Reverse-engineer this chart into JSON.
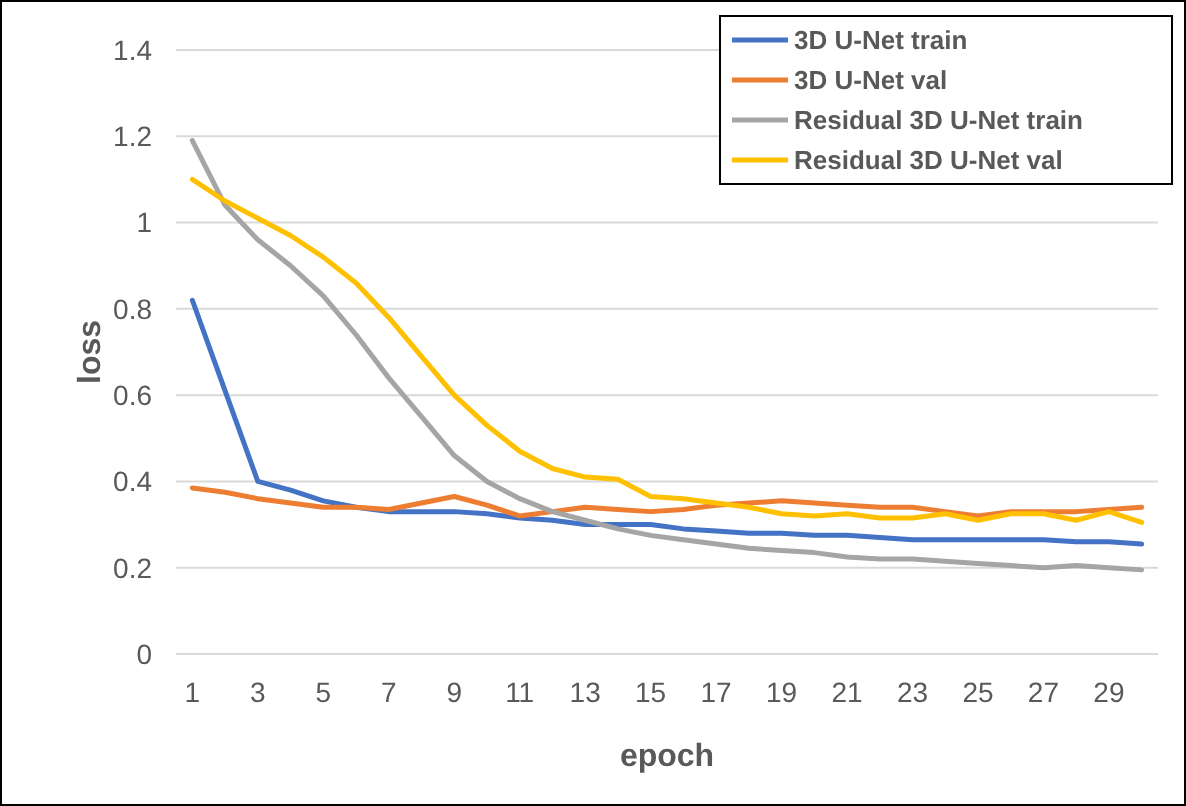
{
  "chart_data": {
    "type": "line",
    "xlabel": "epoch",
    "ylabel": "loss",
    "x": [
      1,
      2,
      3,
      4,
      5,
      6,
      7,
      8,
      9,
      10,
      11,
      12,
      13,
      14,
      15,
      16,
      17,
      18,
      19,
      20,
      21,
      22,
      23,
      24,
      25,
      26,
      27,
      28,
      29,
      30
    ],
    "xlim": [
      0.5,
      30.5
    ],
    "xticks": [
      1,
      3,
      5,
      7,
      9,
      11,
      13,
      15,
      17,
      19,
      21,
      23,
      25,
      27,
      29
    ],
    "series": [
      {
        "name": "3D U-Net train",
        "color": "#4472c4",
        "values": [
          0.82,
          0.61,
          0.4,
          0.38,
          0.355,
          0.34,
          0.33,
          0.33,
          0.33,
          0.325,
          0.315,
          0.31,
          0.3,
          0.3,
          0.3,
          0.29,
          0.285,
          0.28,
          0.28,
          0.275,
          0.275,
          0.27,
          0.265,
          0.265,
          0.265,
          0.265,
          0.265,
          0.26,
          0.26,
          0.255
        ]
      },
      {
        "name": "3D U-Net val",
        "color": "#ed7d31",
        "values": [
          0.385,
          0.375,
          0.36,
          0.35,
          0.34,
          0.34,
          0.335,
          0.35,
          0.365,
          0.345,
          0.32,
          0.33,
          0.34,
          0.335,
          0.33,
          0.335,
          0.345,
          0.35,
          0.355,
          0.35,
          0.345,
          0.34,
          0.34,
          0.33,
          0.32,
          0.33,
          0.33,
          0.33,
          0.335,
          0.34
        ]
      },
      {
        "name": "Residual 3D U-Net train",
        "color": "#a5a5a5",
        "values": [
          1.19,
          1.04,
          0.96,
          0.9,
          0.83,
          0.74,
          0.64,
          0.55,
          0.46,
          0.4,
          0.36,
          0.33,
          0.31,
          0.29,
          0.275,
          0.265,
          0.255,
          0.245,
          0.24,
          0.235,
          0.225,
          0.22,
          0.22,
          0.215,
          0.21,
          0.205,
          0.2,
          0.205,
          0.2,
          0.195
        ]
      },
      {
        "name": "Residual 3D U-Net val",
        "color": "#ffc000",
        "values": [
          1.1,
          1.05,
          1.01,
          0.97,
          0.92,
          0.86,
          0.78,
          0.69,
          0.6,
          0.53,
          0.47,
          0.43,
          0.41,
          0.405,
          0.365,
          0.36,
          0.35,
          0.34,
          0.325,
          0.32,
          0.325,
          0.315,
          0.315,
          0.325,
          0.31,
          0.325,
          0.325,
          0.31,
          0.33,
          0.305
        ]
      }
    ],
    "ylim": [
      0,
      1.4
    ],
    "yticks": [
      0,
      {
        "value": 0.2,
        "label": "0.2"
      },
      {
        "value": 0.4,
        "label": "0.4"
      },
      {
        "value": 0.6,
        "label": "0.6"
      },
      {
        "value": 0.8,
        "label": "0.8"
      },
      1,
      {
        "value": 1.2,
        "label": "1.2"
      },
      {
        "value": 1.4,
        "label": "1.4"
      }
    ],
    "grid": "y",
    "legend": "top right",
    "marker": "none",
    "line_style": "solid"
  }
}
